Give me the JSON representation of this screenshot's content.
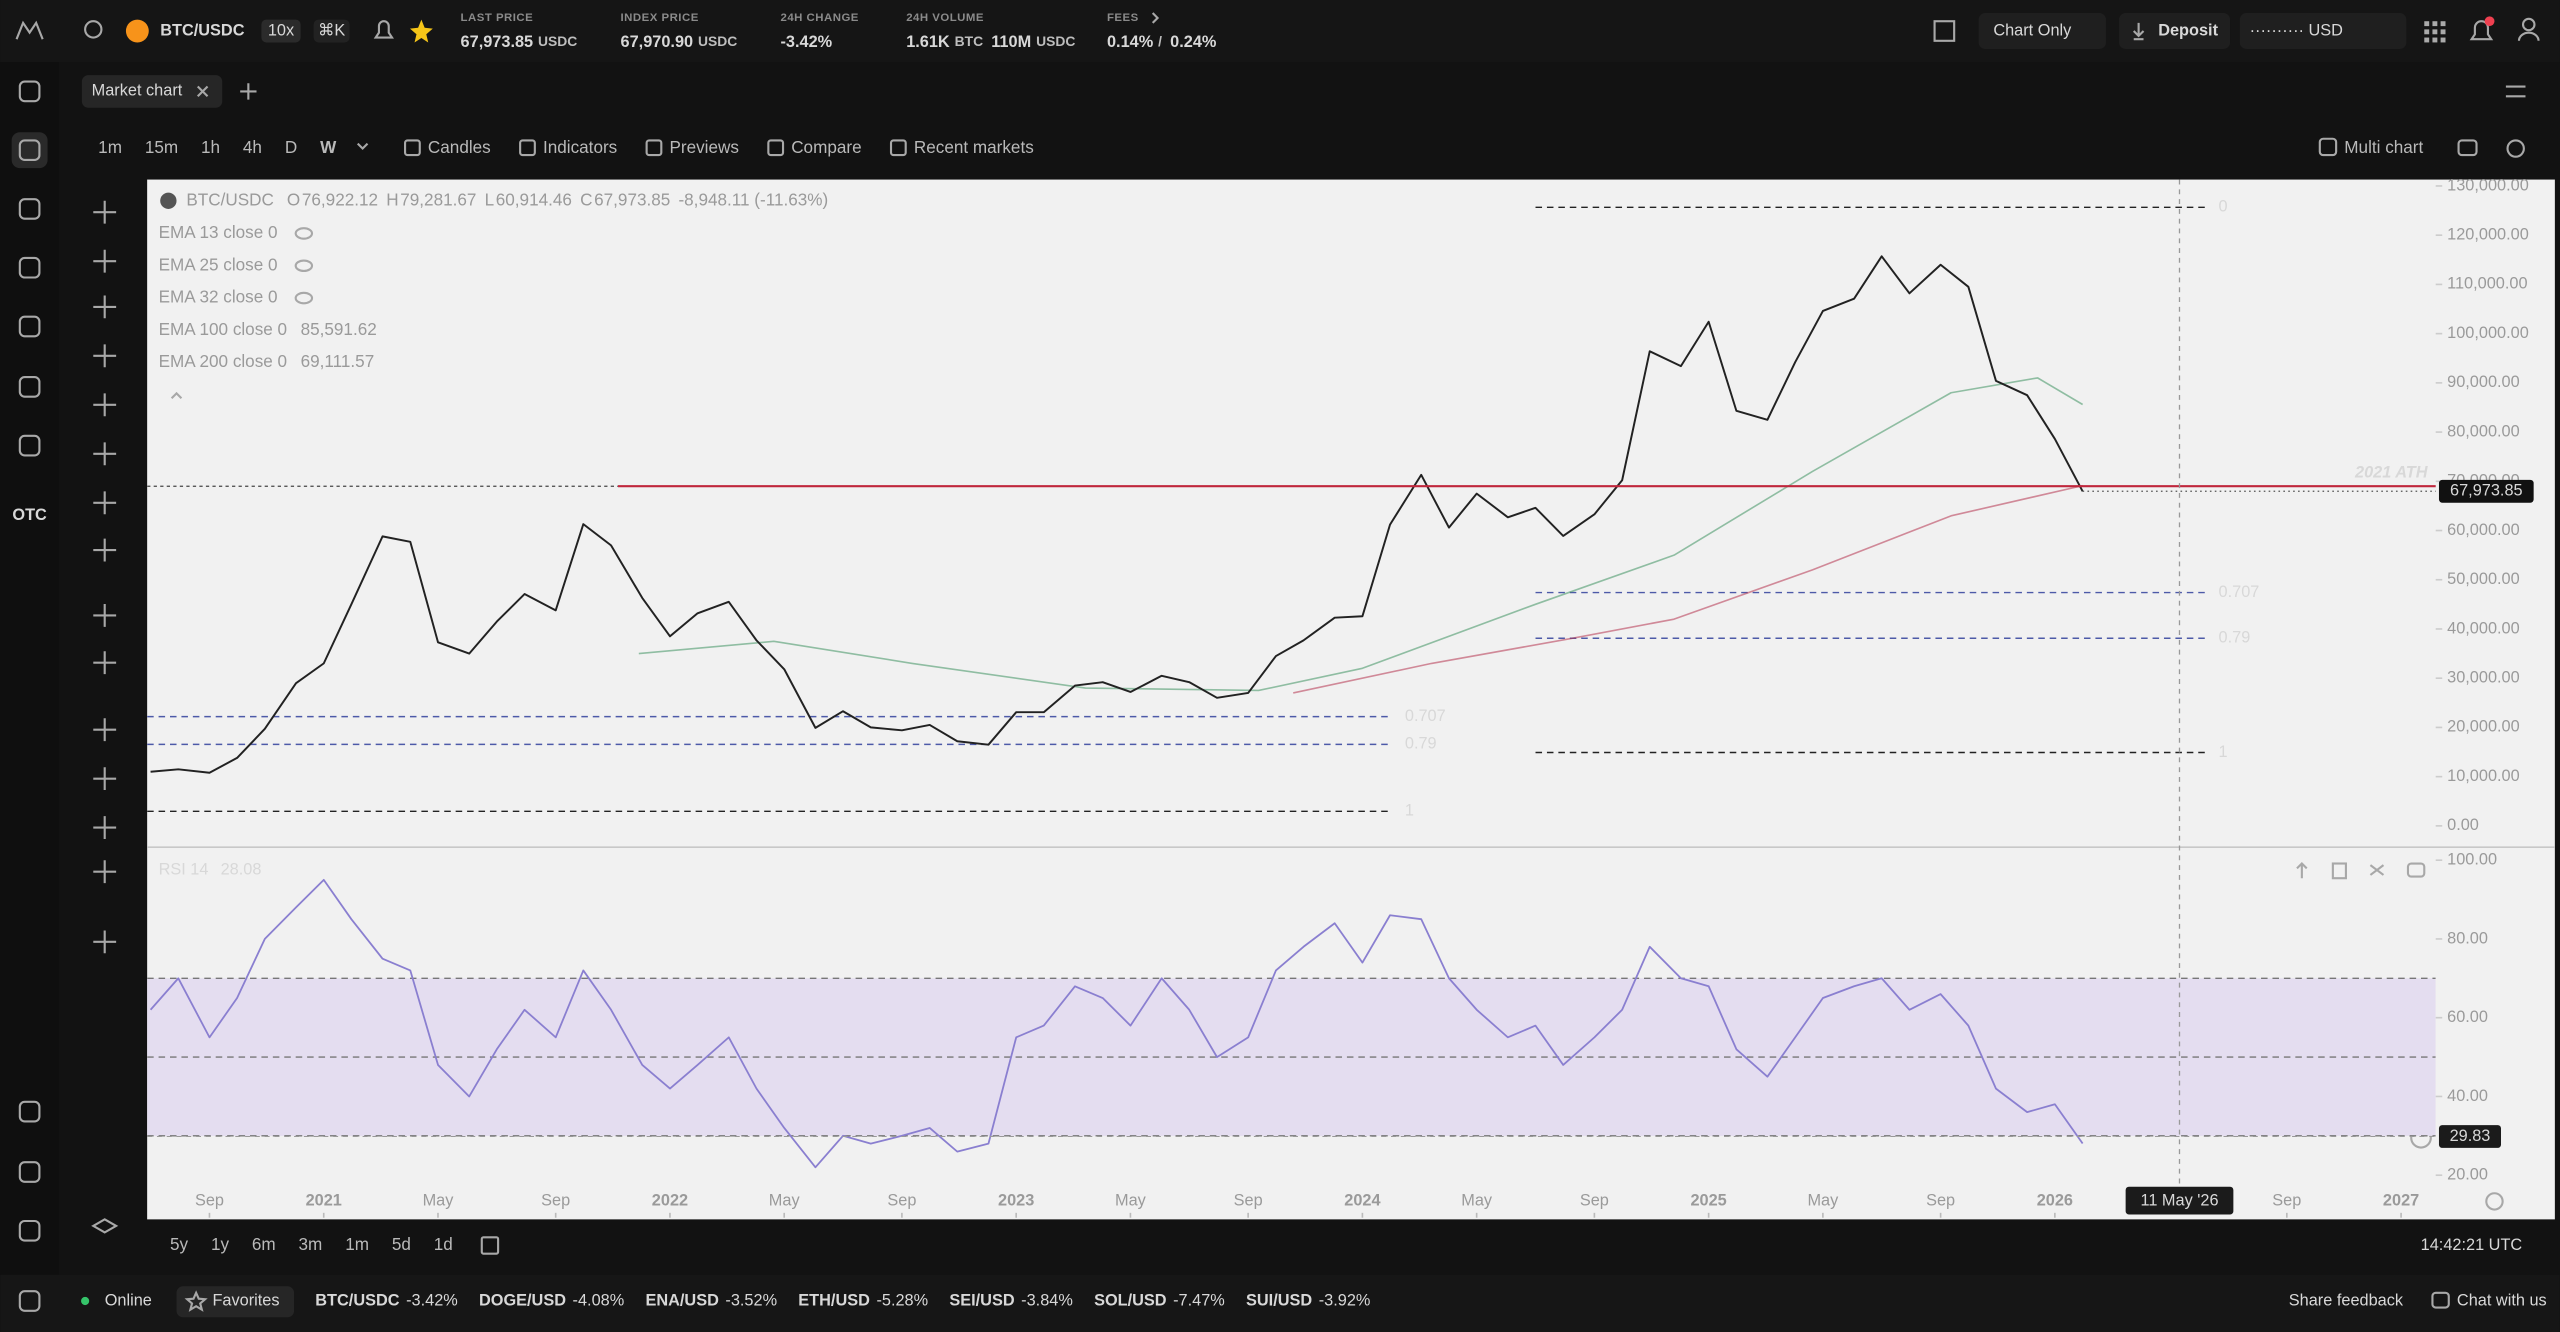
{
  "header": {
    "symbol": "BTC/USDC",
    "leverage": "10x",
    "shortcut": "⌘K",
    "stats": [
      {
        "label": "LAST PRICE",
        "value": "67,973.85",
        "unit": "USDC",
        "color": "#f0556a"
      },
      {
        "label": "INDEX PRICE",
        "value": "67,970.90",
        "unit": "USDC"
      },
      {
        "label": "24H CHANGE",
        "value": "-3.42%",
        "color": "#f0556a"
      },
      {
        "label": "24H VOLUME",
        "value": "1.61K",
        "unit": "BTC",
        "value2": "110M",
        "unit2": "USDC"
      },
      {
        "label": "FEES",
        "value": "0.14%",
        "unit": "/",
        "value2": "0.24%"
      }
    ],
    "view_menu": "Chart Only",
    "deposit": "Deposit",
    "account": "·········· USD"
  },
  "nav": {
    "otc": "OTC"
  },
  "tab": "Market chart",
  "toolbar": {
    "timeframes": [
      "1m",
      "15m",
      "1h",
      "4h",
      "D",
      "W"
    ],
    "active": "W",
    "tools": [
      "Candles",
      "Indicators",
      "Previews",
      "Compare",
      "Recent markets"
    ],
    "multi_chart": "Multi chart"
  },
  "legend": {
    "symbol": "BTC/USDC",
    "ohlc": [
      {
        "key": "O",
        "value": "76,922.12"
      },
      {
        "key": "H",
        "value": "79,281.67"
      },
      {
        "key": "L",
        "value": "60,914.46"
      },
      {
        "key": "C",
        "value": "67,973.85"
      }
    ],
    "change": "-8,948.11 (-11.63%)"
  },
  "time_axis": {
    "xlim": [
      2020.49,
      2027.1
    ],
    "xticks": [
      {
        "value": 2020.67,
        "label": "Sep"
      },
      2021,
      {
        "value": 2021.33,
        "label": "May"
      },
      {
        "value": 2021.67,
        "label": "Sep"
      },
      2022,
      {
        "value": 2022.33,
        "label": "May"
      },
      {
        "value": 2022.67,
        "label": "Sep"
      },
      2023,
      {
        "value": 2023.33,
        "label": "May"
      },
      {
        "value": 2023.67,
        "label": "Sep"
      },
      2024,
      {
        "value": 2024.33,
        "label": "May"
      },
      {
        "value": 2024.67,
        "label": "Sep"
      },
      2025,
      {
        "value": 2025.33,
        "label": "May"
      },
      {
        "value": 2025.67,
        "label": "Sep"
      },
      2026,
      {
        "value": 2026.67,
        "label": "Sep"
      },
      2027
    ],
    "x": [
      2020.5,
      2020.58,
      2020.67,
      2020.75,
      2020.83,
      2020.92,
      2021.0,
      2021.08,
      2021.17,
      2021.25,
      2021.33,
      2021.42,
      2021.5,
      2021.58,
      2021.67,
      2021.75,
      2021.83,
      2021.92,
      2022.0,
      2022.08,
      2022.17,
      2022.25,
      2022.33,
      2022.42,
      2022.5,
      2022.58,
      2022.67,
      2022.75,
      2022.83,
      2022.92,
      2023.0,
      2023.08,
      2023.17,
      2023.25,
      2023.33,
      2023.42,
      2023.5,
      2023.58,
      2023.67,
      2023.75,
      2023.83,
      2023.92,
      2024.0,
      2024.08,
      2024.17,
      2024.25,
      2024.33,
      2024.42,
      2024.5,
      2024.58,
      2024.67,
      2024.75,
      2024.83,
      2024.92,
      2025.0,
      2025.08,
      2025.17,
      2025.25,
      2025.33,
      2025.42,
      2025.5,
      2025.58,
      2025.67,
      2025.75,
      2025.83,
      2025.92,
      2026.0,
      2026.08
    ]
  },
  "price_chart": {
    "type": "line",
    "color": "#222222",
    "ylim": [
      -4000,
      131300
    ],
    "yticks": [
      {
        "value": 130000,
        "label": "130,000.00"
      },
      {
        "value": 120000,
        "label": "120,000.00"
      },
      {
        "value": 110000,
        "label": "110,000.00"
      },
      {
        "value": 100000,
        "label": "100,000.00"
      },
      {
        "value": 90000,
        "label": "90,000.00"
      },
      {
        "value": 80000,
        "label": "80,000.00"
      },
      {
        "value": 70000,
        "label": "70,000.00"
      },
      {
        "value": 60000,
        "label": "60,000.00"
      },
      {
        "value": 50000,
        "label": "50,000.00"
      },
      {
        "value": 40000,
        "label": "40,000.00"
      },
      {
        "value": 30000,
        "label": "30,000.00"
      },
      {
        "value": 20000,
        "label": "20,000.00"
      },
      {
        "value": 10000,
        "label": "10,000.00"
      },
      {
        "value": 0,
        "label": "0.00"
      }
    ],
    "values": [
      11000,
      11500,
      10800,
      13800,
      19700,
      29000,
      33000,
      45000,
      58800,
      57700,
      37300,
      35000,
      41500,
      47100,
      43800,
      61300,
      57000,
      46300,
      38500,
      43200,
      45500,
      37700,
      31800,
      19900,
      23300,
      20000,
      19400,
      20500,
      17200,
      16500,
      23100,
      23100,
      28500,
      29200,
      27200,
      30500,
      29200,
      26000,
      27000,
      34500,
      37700,
      42300,
      42600,
      61200,
      71300,
      60600,
      67500,
      62700,
      64600,
      58900,
      63300,
      70200,
      96400,
      93400,
      102400,
      84300,
      82500,
      94200,
      104600,
      107100,
      115700,
      108200,
      114000,
      109500,
      90400,
      87500,
      78600,
      67973.85
    ],
    "indicators": [
      {
        "name": "EMA 13 close 0",
        "hidden": true
      },
      {
        "name": "EMA 25 close 0",
        "hidden": true
      },
      {
        "name": "EMA 32 close 0",
        "hidden": true
      },
      {
        "name": "EMA 100 close 0",
        "value": "85,591.62",
        "color": "#3e9160",
        "x": [
          2021.91,
          2022.3,
          2022.7,
          2023.2,
          2023.7,
          2024.0,
          2024.5,
          2024.9,
          2025.3,
          2025.7,
          2025.95,
          2026.08
        ],
        "values": [
          35000,
          37500,
          33000,
          28000,
          27500,
          32000,
          45000,
          55000,
          72000,
          88000,
          91000,
          85591.62
        ]
      },
      {
        "name": "EMA 200 close 0",
        "value": "69,111.57",
        "color": "#b4334e",
        "x": [
          2023.8,
          2024.2,
          2024.6,
          2024.9,
          2025.3,
          2025.7,
          2026.08
        ],
        "values": [
          27000,
          33000,
          38000,
          42000,
          52000,
          63000,
          69111.57
        ]
      }
    ],
    "ath": {
      "label": "2021 ATH",
      "price": 69000,
      "x_start": 2021.85,
      "color": "#c0263c"
    },
    "fib_sets": [
      {
        "x_range": [
          2020.49,
          2024.085
        ],
        "levels": [
          {
            "ratio": 0.707,
            "price": 22200,
            "color": "#4d5aa8"
          },
          {
            "ratio": 0.79,
            "price": 16560,
            "color": "#4d5aa8"
          },
          {
            "ratio": 1,
            "price": 2960,
            "color": "#222222"
          }
        ]
      },
      {
        "x_range": [
          2024.5,
          2026.435
        ],
        "levels": [
          {
            "ratio": 0,
            "price": 125660,
            "color": "#222222"
          },
          {
            "ratio": 0.707,
            "price": 47400,
            "color": "#4d5aa8"
          },
          {
            "ratio": 0.79,
            "price": 38110,
            "color": "#4d5aa8"
          },
          {
            "ratio": 1,
            "price": 14900,
            "color": "#222222"
          }
        ]
      }
    ],
    "last_price": {
      "value": 67973.85,
      "label": "67,973.85"
    }
  },
  "rsi_chart": {
    "type": "line",
    "name": "RSI 14",
    "current": 28.08,
    "color": "#8a7fd0",
    "ylim": [
      9.2,
      103.3
    ],
    "yticks": [
      {
        "value": 100,
        "label": "100.00"
      },
      {
        "value": 80,
        "label": "80.00"
      },
      {
        "value": 60,
        "label": "60.00"
      },
      {
        "value": 40,
        "label": "40.00"
      },
      {
        "value": 20,
        "label": "20.00"
      }
    ],
    "levels": [
      70,
      50,
      30
    ],
    "band": [
      30,
      70
    ],
    "values": [
      62,
      70,
      55,
      65,
      80,
      88,
      95,
      85,
      75,
      72,
      48,
      40,
      52,
      62,
      55,
      72,
      62,
      48,
      42,
      48,
      55,
      42,
      32,
      22,
      30,
      28,
      30,
      32,
      26,
      28,
      55,
      58,
      68,
      65,
      58,
      70,
      62,
      50,
      55,
      72,
      78,
      84,
      74,
      86,
      85,
      70,
      62,
      55,
      58,
      48,
      55,
      62,
      78,
      70,
      68,
      52,
      45,
      55,
      65,
      68,
      70,
      62,
      66,
      58,
      42,
      36,
      38,
      28.08
    ]
  },
  "crosshair": {
    "x": 2026.36,
    "x_label": "11 May '26",
    "rsi": 29.83
  },
  "range_buttons": [
    "5y",
    "1y",
    "6m",
    "3m",
    "1m",
    "5d",
    "1d"
  ],
  "clock": "14:42:21 UTC",
  "status": {
    "online": "Online",
    "favorites": "Favorites",
    "tickers": [
      {
        "symbol": "BTC/USDC",
        "change": "-3.42%"
      },
      {
        "symbol": "DOGE/USD",
        "change": "-4.08%"
      },
      {
        "symbol": "ENA/USD",
        "change": "-3.52%"
      },
      {
        "symbol": "ETH/USD",
        "change": "-5.28%"
      },
      {
        "symbol": "SEI/USD",
        "change": "-3.84%"
      },
      {
        "symbol": "SOL/USD",
        "change": "-7.47%"
      },
      {
        "symbol": "SUI/USD",
        "change": "-3.92%"
      }
    ],
    "feedback": "Share feedback",
    "chat": "Chat with us"
  }
}
